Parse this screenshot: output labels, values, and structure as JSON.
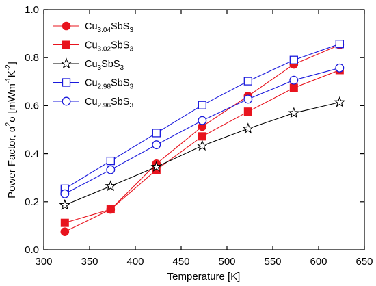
{
  "chart_data": {
    "type": "line",
    "xlabel": "Temperature [K]",
    "ylabel_parts": [
      "Power Factor, ",
      "α",
      "2",
      "σ",
      " [mWm",
      "-1",
      "K",
      "-2",
      "]"
    ],
    "xlim": [
      300,
      650
    ],
    "ylim": [
      0.0,
      1.0
    ],
    "x_ticks": [
      "300",
      "350",
      "400",
      "450",
      "500",
      "550",
      "600",
      "650"
    ],
    "y_ticks": [
      "0.0",
      "0.2",
      "0.4",
      "0.6",
      "0.8",
      "1.0"
    ],
    "grid": false,
    "legend_position": "top-left",
    "series": [
      {
        "name": "Cu3.04SbS3",
        "legend": [
          "Cu",
          "3.04",
          "SbS",
          "3"
        ],
        "color": "#e8141e",
        "marker": "circle-filled",
        "x": [
          323,
          373,
          423,
          473,
          523,
          573,
          623
        ],
        "y": [
          0.075,
          0.168,
          0.358,
          0.513,
          0.64,
          0.772,
          0.853
        ]
      },
      {
        "name": "Cu3.02SbS3",
        "legend": [
          "Cu",
          "3.02",
          "SbS",
          "3"
        ],
        "color": "#e8141e",
        "marker": "square-filled",
        "x": [
          323,
          373,
          423,
          473,
          523,
          573,
          623
        ],
        "y": [
          0.112,
          0.168,
          0.333,
          0.472,
          0.575,
          0.674,
          0.748
        ]
      },
      {
        "name": "Cu3SbS3",
        "legend": [
          "Cu",
          "3",
          "SbS",
          "3"
        ],
        "color": "#000000",
        "marker": "star-open",
        "x": [
          323,
          373,
          423,
          473,
          523,
          573,
          623
        ],
        "y": [
          0.186,
          0.265,
          0.345,
          0.433,
          0.504,
          0.569,
          0.614
        ]
      },
      {
        "name": "Cu2.98SbS3",
        "legend": [
          "Cu",
          "2.98",
          "SbS",
          "3"
        ],
        "color": "#1a1adc",
        "marker": "square-open",
        "x": [
          323,
          373,
          423,
          473,
          523,
          573,
          623
        ],
        "y": [
          0.254,
          0.37,
          0.486,
          0.602,
          0.702,
          0.79,
          0.857
        ]
      },
      {
        "name": "Cu2.96SbS3",
        "legend": [
          "Cu",
          "2.96",
          "SbS",
          "3"
        ],
        "color": "#1a1adc",
        "marker": "circle-open",
        "x": [
          323,
          373,
          423,
          473,
          523,
          573,
          623
        ],
        "y": [
          0.233,
          0.333,
          0.437,
          0.538,
          0.627,
          0.706,
          0.757
        ]
      }
    ]
  }
}
